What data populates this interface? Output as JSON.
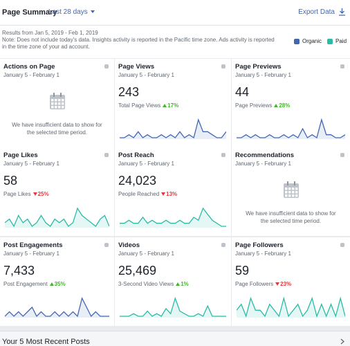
{
  "header": {
    "title": "Page Summary",
    "range": "Last 28 days",
    "export": "Export Data"
  },
  "info": {
    "results": "Results from Jan 5, 2019 - Feb 1, 2019",
    "note": "Note: Does not include today's data. Insights activity is reported in the Pacific time zone. Ads activity is reported in the time zone of your ad account."
  },
  "legend": [
    {
      "name": "Organic",
      "color": "#4267b2"
    },
    {
      "name": "Paid",
      "color": "#2abba7"
    }
  ],
  "cards": [
    {
      "title": "Actions on Page",
      "date": "January 5 - February 1",
      "empty": "We have insufficient data to show for the selected time period."
    },
    {
      "title": "Page Views",
      "date": "January 5 - February 1",
      "value": "243",
      "metric": "Total Page Views",
      "change": "17%",
      "direction": "up",
      "color": "#4267b2",
      "sparkline": [
        3,
        3,
        4,
        3,
        5,
        3,
        4,
        3,
        3,
        4,
        3,
        4,
        3,
        5,
        3,
        4,
        3,
        9,
        5,
        5,
        4,
        3,
        3,
        5
      ]
    },
    {
      "title": "Page Previews",
      "date": "January 5 - February 1",
      "value": "44",
      "metric": "Page Previews",
      "change": "28%",
      "direction": "up",
      "color": "#4267b2",
      "sparkline": [
        2,
        2,
        3,
        2,
        3,
        2,
        2,
        3,
        2,
        2,
        3,
        2,
        3,
        2,
        5,
        2,
        3,
        2,
        8,
        3,
        3,
        2,
        2,
        3
      ]
    },
    {
      "title": "Page Likes",
      "date": "January 5 - February 1",
      "value": "58",
      "metric": "Page Likes",
      "change": "25%",
      "direction": "down",
      "color": "#2abba7",
      "sparkline": [
        4,
        5,
        3,
        6,
        4,
        5,
        3,
        4,
        6,
        4,
        3,
        5,
        4,
        5,
        3,
        4,
        8,
        6,
        5,
        4,
        3,
        5,
        6,
        3
      ]
    },
    {
      "title": "Post Reach",
      "date": "January 5 - February 1",
      "value": "24,023",
      "metric": "People Reached",
      "change": "13%",
      "direction": "down",
      "color": "#2abba7",
      "sparkline": [
        3,
        3,
        4,
        3,
        3,
        5,
        3,
        4,
        3,
        3,
        4,
        3,
        3,
        4,
        3,
        3,
        5,
        4,
        8,
        6,
        4,
        3,
        2,
        2
      ]
    },
    {
      "title": "Recommendations",
      "date": "January 5 - February 1",
      "empty": "We have insufficient data to show for the selected time period."
    },
    {
      "title": "Post Engagements",
      "date": "January 5 - February 1",
      "value": "7,433",
      "metric": "Post Engagement",
      "change": "35%",
      "direction": "up",
      "color": "#4267b2",
      "sparkline": [
        2,
        3,
        2,
        3,
        2,
        3,
        4,
        2,
        3,
        2,
        2,
        3,
        2,
        3,
        2,
        3,
        2,
        6,
        4,
        2,
        3,
        2,
        2,
        2
      ]
    },
    {
      "title": "Videos",
      "date": "January 5 - February 1",
      "value": "25,469",
      "metric": "3-Second Video Views",
      "change": "1%",
      "direction": "up",
      "color": "#2abba7",
      "sparkline": [
        2,
        2,
        2,
        3,
        2,
        2,
        4,
        2,
        3,
        2,
        5,
        3,
        9,
        4,
        3,
        2,
        2,
        3,
        2,
        6,
        2,
        2,
        2,
        2
      ]
    },
    {
      "title": "Page Followers",
      "date": "January 5 - February 1",
      "value": "59",
      "metric": "Page Followers",
      "change": "23%",
      "direction": "down",
      "color": "#2abba7",
      "sparkline": [
        4,
        5,
        3,
        6,
        4,
        4,
        3,
        5,
        4,
        3,
        6,
        3,
        4,
        5,
        3,
        4,
        6,
        3,
        5,
        3,
        5,
        3,
        6,
        3
      ]
    }
  ],
  "footer": {
    "title": "Your 5 Most Recent Posts"
  }
}
